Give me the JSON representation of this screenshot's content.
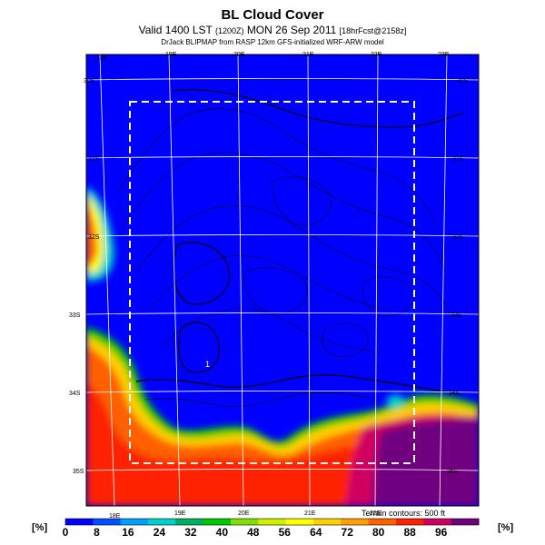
{
  "header": {
    "title": "BL Cloud Cover",
    "subtitle_main": "Valid 1400 LST",
    "subtitle_paren": "(1200Z)",
    "subtitle_date": "MON 26 Sep 2011",
    "subtitle_bracket": "[18hrFcst@2158z]",
    "credit": "DrJack BLIPMAP from RASP 12km GFS-initialized WRF-ARW model"
  },
  "map": {
    "lon_labels_top": [
      "18E",
      "19E",
      "20E",
      "21E",
      "22E",
      "23E"
    ],
    "lon_labels_bottom": [
      "18E",
      "19E",
      "20E",
      "21E",
      "22E"
    ],
    "lat_labels_left": [
      "30S",
      "31S",
      "32S",
      "33S",
      "34S",
      "35S"
    ],
    "lat_labels_right": [
      "30S",
      "31S",
      "32S",
      "33S",
      "34S",
      "35S"
    ],
    "terrain_note": "Terrain contours: 500 ft",
    "point_label": "1"
  },
  "colorbar": {
    "unit_left": "[%]",
    "unit_right": "[%]",
    "ticks": [
      "0",
      "8",
      "16",
      "24",
      "32",
      "40",
      "48",
      "56",
      "64",
      "72",
      "80",
      "88",
      "96"
    ],
    "colors": [
      "#0000ff",
      "#0050ff",
      "#00a0ff",
      "#00d0d0",
      "#00b060",
      "#00c800",
      "#80e000",
      "#d0f000",
      "#ffff00",
      "#ffd000",
      "#ffa000",
      "#ff6000",
      "#ff2000",
      "#d00060",
      "#700080"
    ]
  }
}
